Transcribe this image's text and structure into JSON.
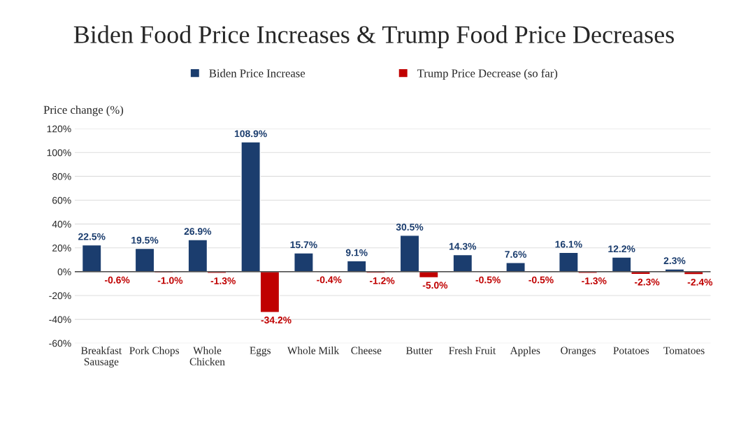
{
  "chart_data": {
    "type": "bar",
    "title": "Biden Food Price Increases & Trump Food Price Decreases",
    "ylabel": "Price change (%)",
    "categories": [
      "Breakfast Sausage",
      "Pork Chops",
      "Whole Chicken",
      "Eggs",
      "Whole Milk",
      "Cheese",
      "Butter",
      "Fresh Fruit",
      "Apples",
      "Oranges",
      "Potatoes",
      "Tomatoes"
    ],
    "series": [
      {
        "name": "Biden Price Increase",
        "color": "#1b3d6e",
        "values": [
          22.5,
          19.5,
          26.9,
          108.9,
          15.7,
          9.1,
          30.5,
          14.3,
          7.6,
          16.1,
          12.2,
          2.3
        ],
        "value_labels": [
          "22.5%",
          "19.5%",
          "26.9%",
          "108.9%",
          "15.7%",
          "9.1%",
          "30.5%",
          "14.3%",
          "7.6%",
          "16.1%",
          "12.2%",
          "2.3%"
        ]
      },
      {
        "name": "Trump Price Decrease (so far)",
        "color": "#c00000",
        "values": [
          -0.6,
          -1.0,
          -1.3,
          -34.2,
          -0.4,
          -1.2,
          -5.0,
          -0.5,
          -0.5,
          -1.3,
          -2.3,
          -2.4
        ],
        "value_labels": [
          "-0.6%",
          "-1.0%",
          "-1.3%",
          "-34.2%",
          "-0.4%",
          "-1.2%",
          "-5.0%",
          "-0.5%",
          "-0.5%",
          "-1.3%",
          "-2.3%",
          "-2.4%"
        ]
      }
    ],
    "ylim": [
      -60,
      120
    ],
    "yticks": [
      {
        "value": -60,
        "label": "-60%"
      },
      {
        "value": -40,
        "label": "-40%"
      },
      {
        "value": -20,
        "label": "-20%"
      },
      {
        "value": 0,
        "label": "0%"
      },
      {
        "value": 20,
        "label": "20%"
      },
      {
        "value": 40,
        "label": "40%"
      },
      {
        "value": 60,
        "label": "60%"
      },
      {
        "value": 80,
        "label": "80%"
      },
      {
        "value": 100,
        "label": "100%"
      },
      {
        "value": 120,
        "label": "120%"
      }
    ],
    "grid": "y",
    "legend": "top"
  }
}
